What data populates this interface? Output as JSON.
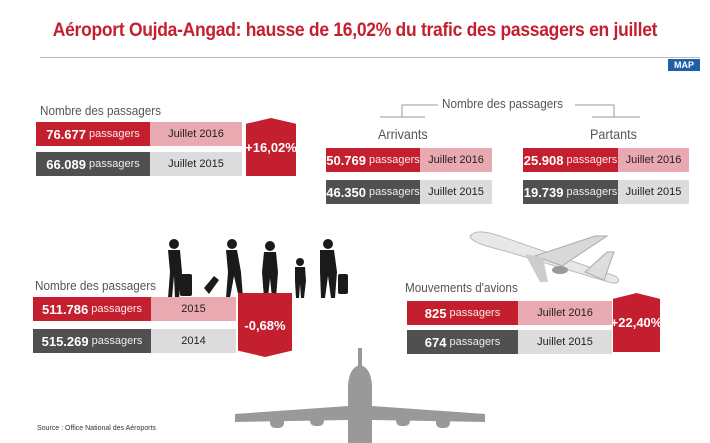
{
  "title": "Aéroport Oujda-Angad: hausse de 16,02% du trafic des passagers en juillet",
  "logo": "MAP",
  "unit": "passagers",
  "s1": {
    "label": "Nombre des passagers",
    "rows": [
      {
        "value": "76.677",
        "period": "Juillet 2016"
      },
      {
        "value": "66.089",
        "period": "Juillet 2015"
      }
    ],
    "change": "+16,02%"
  },
  "s2": {
    "label": "Nombre des passagers",
    "arr": {
      "label": "Arrivants",
      "rows": [
        {
          "value": "50.769",
          "period": "Juillet 2016"
        },
        {
          "value": "46.350",
          "period": "Juillet 2015"
        }
      ]
    },
    "dep": {
      "label": "Partants",
      "rows": [
        {
          "value": "25.908",
          "period": "Juillet 2016"
        },
        {
          "value": "19.739",
          "period": "Juillet 2015"
        }
      ]
    }
  },
  "s3": {
    "label": "Nombre des passagers",
    "rows": [
      {
        "value": "511.786",
        "period": "2015"
      },
      {
        "value": "515.269",
        "period": "2014"
      }
    ],
    "change": "-0,68%"
  },
  "s4": {
    "label": "Mouvements d'avions",
    "rows": [
      {
        "value": "825",
        "period": "Juillet 2016"
      },
      {
        "value": "674",
        "period": "Juillet 2015"
      }
    ],
    "change": "+22,40%"
  },
  "source": "Source : Office National des Aéroports"
}
